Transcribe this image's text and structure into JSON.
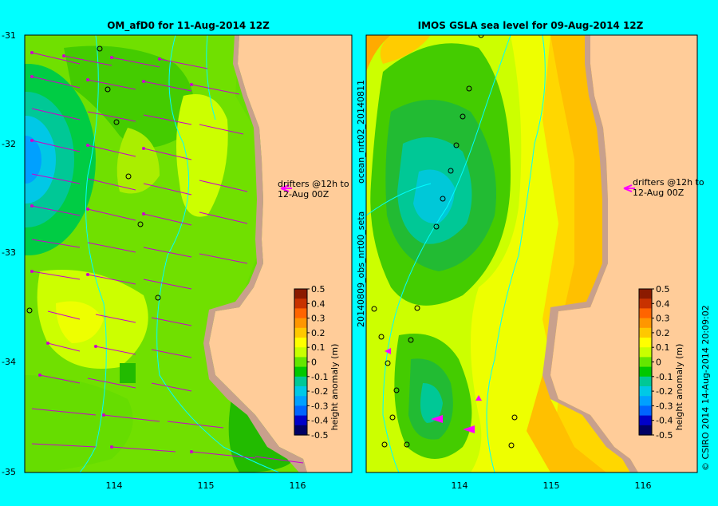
{
  "left_panel": {
    "title": "OM_afD0 for 11-Aug-2014 12Z",
    "lat_ticks": [
      "-31",
      "-32",
      "-33",
      "-34",
      "-35"
    ],
    "lon_ticks": [
      "114",
      "115",
      "116"
    ],
    "drifter_note_line1": "drifters @12h to",
    "drifter_note_line2": "12-Aug 00Z"
  },
  "right_panel": {
    "title": "IMOS GSLA sea level  for 09-Aug-2014 12Z",
    "lon_ticks": [
      "114",
      "115",
      "116"
    ],
    "vertical_label_top": "ocean_nrt02_20140811",
    "vertical_label_bottom": "20140809_obs_nrt00_seta",
    "drifter_note_line1": "drifters @12h to",
    "drifter_note_line2": "12-Aug 00Z"
  },
  "colorbar": {
    "title": "height anomaly (m)",
    "ticks": [
      "0.5",
      "0.4",
      "0.3",
      "0.2",
      "0.1",
      "0",
      "-0.1",
      "-0.2",
      "-0.3",
      "-0.4",
      "-0.5"
    ],
    "colors": [
      "#8b1a00",
      "#c83200",
      "#ff6400",
      "#ff9600",
      "#ffc800",
      "#ffff00",
      "#c8ff00",
      "#64e600",
      "#00c800",
      "#00c896",
      "#00c8e6",
      "#00a0ff",
      "#0064ff",
      "#0000c8",
      "#000064"
    ]
  },
  "footer": {
    "credit": "© CSIRO 2014   14-Aug-2014 20:09:02"
  },
  "colors": {
    "background": "#00ffff",
    "land": "#ffcc99",
    "shelf": "#c8a08c",
    "arrows": "#cc00cc",
    "drifter_arrow": "#ff00ff"
  }
}
